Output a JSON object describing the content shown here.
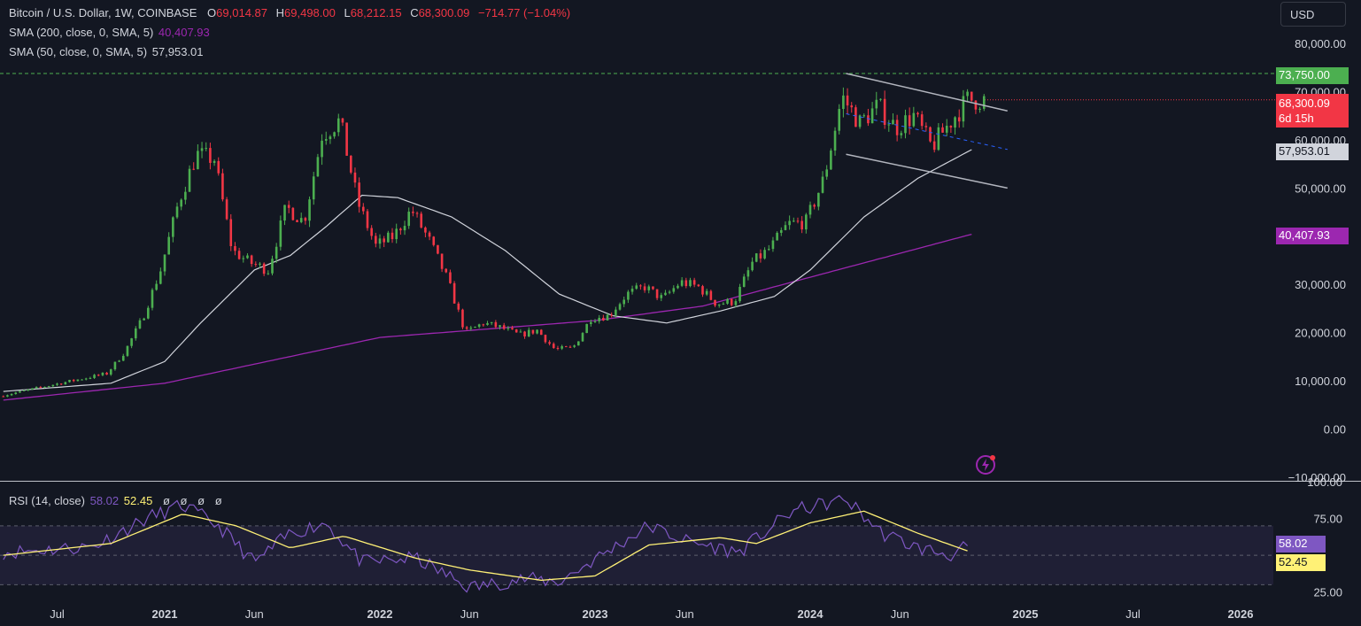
{
  "header": {
    "symbol": "Bitcoin / U.S. Dollar, 1W, COINBASE",
    "o_label": "O",
    "o_value": "69,014.87",
    "h_label": "H",
    "h_value": "69,498.00",
    "l_label": "L",
    "l_value": "68,212.15",
    "c_label": "C",
    "c_value": "68,300.09",
    "change": "−714.77 (−1.04%)",
    "sma200_label": "SMA (200, close, 0, SMA, 5)",
    "sma200_value": "40,407.93",
    "sma50_label": "SMA (50, close, 0, SMA, 5)",
    "sma50_value": "57,953.01",
    "currency_button": "USD"
  },
  "rsi_header": {
    "label": "RSI (14, close)",
    "value": "58.02",
    "ma_value": "52.45",
    "extras": [
      "ø",
      "ø",
      "ø",
      "ø"
    ]
  },
  "badges": {
    "resistance": "73,750.00",
    "price": "68,300.09",
    "countdown": "6d 15h",
    "sma50": "57,953.01",
    "sma200": "40,407.93",
    "rsi": "58.02",
    "rsi_ma": "52.45"
  },
  "colors": {
    "background": "#131722",
    "up": "#26a69a",
    "candle_up": "#4caf50",
    "candle_down": "#f23645",
    "sma50": "#d1d4dc",
    "sma200": "#9c27b0",
    "rsi": "#7e57c2",
    "rsi_ma": "#fff176",
    "resistance": "#4caf50"
  },
  "chart_data": [
    {
      "type": "candlestick",
      "title": "Bitcoin / U.S. Dollar, 1W, COINBASE",
      "y_scale": "linear",
      "y_ticks": [
        "80,000.00",
        "70,000.00",
        "60,000.00",
        "50,000.00",
        "40,000.00",
        "30,000.00",
        "20,000.00",
        "10,000.00",
        "0.00",
        "−10,000.00"
      ],
      "y_tick_values": [
        80000,
        70000,
        60000,
        50000,
        40000,
        30000,
        20000,
        10000,
        0,
        -10000
      ],
      "ylim": [
        -10000,
        80000
      ],
      "x_ticks": [
        "Jul",
        "2021",
        "Jun",
        "2022",
        "Jun",
        "2023",
        "Jun",
        "2024",
        "Jun",
        "2025",
        "Jul",
        "2026"
      ],
      "x_tick_dates": [
        "2020-07",
        "2021-01",
        "2021-06",
        "2022-01",
        "2022-06",
        "2023-01",
        "2023-06",
        "2024-01",
        "2024-06",
        "2025-01",
        "2025-07",
        "2026-01"
      ],
      "xlim": [
        "2020-04",
        "2026-04"
      ],
      "price_anchors": [
        [
          "2020-04",
          6800
        ],
        [
          "2020-07",
          9200
        ],
        [
          "2020-10",
          11500
        ],
        [
          "2020-11",
          16000
        ],
        [
          "2020-12",
          23000
        ],
        [
          "2021-01",
          33000
        ],
        [
          "2021-02",
          47000
        ],
        [
          "2021-03",
          57000
        ],
        [
          "2021-04",
          56000
        ],
        [
          "2021-05",
          37000
        ],
        [
          "2021-06",
          34500
        ],
        [
          "2021-07",
          33000
        ],
        [
          "2021-08",
          46000
        ],
        [
          "2021-09",
          43000
        ],
        [
          "2021-10",
          61000
        ],
        [
          "2021-11",
          64000
        ],
        [
          "2021-12",
          47000
        ],
        [
          "2022-01",
          38000
        ],
        [
          "2022-02",
          40000
        ],
        [
          "2022-03",
          45500
        ],
        [
          "2022-04",
          39000
        ],
        [
          "2022-05",
          31000
        ],
        [
          "2022-06",
          20000
        ],
        [
          "2022-07",
          22000
        ],
        [
          "2022-08",
          21000
        ],
        [
          "2022-09",
          19500
        ],
        [
          "2022-10",
          20500
        ],
        [
          "2022-11",
          16500
        ],
        [
          "2022-12",
          16800
        ],
        [
          "2023-01",
          23000
        ],
        [
          "2023-02",
          23500
        ],
        [
          "2023-03",
          28000
        ],
        [
          "2023-04",
          29500
        ],
        [
          "2023-05",
          27000
        ],
        [
          "2023-06",
          30500
        ],
        [
          "2023-07",
          29500
        ],
        [
          "2023-08",
          26000
        ],
        [
          "2023-09",
          26500
        ],
        [
          "2023-10",
          34500
        ],
        [
          "2023-11",
          37500
        ],
        [
          "2023-12",
          42500
        ],
        [
          "2024-01",
          43000
        ],
        [
          "2024-02",
          52000
        ],
        [
          "2024-03",
          69000
        ],
        [
          "2024-04",
          63500
        ],
        [
          "2024-05",
          67000
        ],
        [
          "2024-06",
          62500
        ],
        [
          "2024-07",
          65000
        ],
        [
          "2024-08",
          58500
        ],
        [
          "2024-09",
          63500
        ],
        [
          "2024-10",
          68300
        ]
      ],
      "sma50_anchors": [
        [
          "2020-04",
          7800
        ],
        [
          "2020-10",
          9500
        ],
        [
          "2021-01",
          14000
        ],
        [
          "2021-03",
          22000
        ],
        [
          "2021-06",
          33000
        ],
        [
          "2021-08",
          36000
        ],
        [
          "2021-10",
          42000
        ],
        [
          "2021-12",
          48500
        ],
        [
          "2022-02",
          48000
        ],
        [
          "2022-05",
          44000
        ],
        [
          "2022-08",
          37000
        ],
        [
          "2022-11",
          28000
        ],
        [
          "2023-02",
          23500
        ],
        [
          "2023-05",
          22000
        ],
        [
          "2023-08",
          24500
        ],
        [
          "2023-11",
          27500
        ],
        [
          "2024-01",
          33000
        ],
        [
          "2024-04",
          44000
        ],
        [
          "2024-07",
          52000
        ],
        [
          "2024-10",
          57953
        ]
      ],
      "sma200_anchors": [
        [
          "2020-04",
          6000
        ],
        [
          "2021-01",
          9500
        ],
        [
          "2022-01",
          19000
        ],
        [
          "2023-01",
          22500
        ],
        [
          "2023-07",
          25500
        ],
        [
          "2024-01",
          31500
        ],
        [
          "2024-10",
          40408
        ]
      ],
      "channel": {
        "upper": [
          [
            "2024-03",
            73750
          ],
          [
            "2024-12",
            66000
          ]
        ],
        "lower": [
          [
            "2024-03",
            57000
          ],
          [
            "2024-12",
            50000
          ]
        ],
        "mid": [
          [
            "2024-03",
            65400
          ],
          [
            "2024-12",
            58000
          ]
        ]
      },
      "resistance_level": 73750,
      "last_close": 68300.09
    },
    {
      "type": "line",
      "title": "RSI (14, close)",
      "y_ticks": [
        "100.00",
        "75.00",
        "25.00"
      ],
      "y_tick_values": [
        100,
        75,
        25
      ],
      "ylim": [
        20,
        100
      ],
      "bands": [
        70,
        50,
        30
      ],
      "rsi_anchors": [
        [
          "2020-04",
          52
        ],
        [
          "2020-09",
          56
        ],
        [
          "2020-12",
          75
        ],
        [
          "2021-02",
          84
        ],
        [
          "2021-04",
          70
        ],
        [
          "2021-06",
          45
        ],
        [
          "2021-08",
          65
        ],
        [
          "2021-10",
          72
        ],
        [
          "2021-12",
          45
        ],
        [
          "2022-03",
          48
        ],
        [
          "2022-06",
          28
        ],
        [
          "2022-09",
          34
        ],
        [
          "2022-11",
          32
        ],
        [
          "2023-02",
          55
        ],
        [
          "2023-04",
          70
        ],
        [
          "2023-06",
          60
        ],
        [
          "2023-09",
          52
        ],
        [
          "2023-12",
          80
        ],
        [
          "2024-03",
          88
        ],
        [
          "2024-05",
          65
        ],
        [
          "2024-07",
          55
        ],
        [
          "2024-09",
          50
        ],
        [
          "2024-10",
          58
        ]
      ],
      "ma_anchors": [
        [
          "2020-04",
          50
        ],
        [
          "2020-10",
          58
        ],
        [
          "2021-02",
          78
        ],
        [
          "2021-05",
          70
        ],
        [
          "2021-08",
          55
        ],
        [
          "2021-11",
          63
        ],
        [
          "2022-03",
          48
        ],
        [
          "2022-06",
          40
        ],
        [
          "2022-10",
          33
        ],
        [
          "2023-01",
          36
        ],
        [
          "2023-04",
          57
        ],
        [
          "2023-08",
          62
        ],
        [
          "2023-10",
          58
        ],
        [
          "2024-01",
          72
        ],
        [
          "2024-04",
          80
        ],
        [
          "2024-07",
          65
        ],
        [
          "2024-10",
          52
        ]
      ],
      "last_value": 58.02,
      "last_ma": 52.45
    }
  ]
}
